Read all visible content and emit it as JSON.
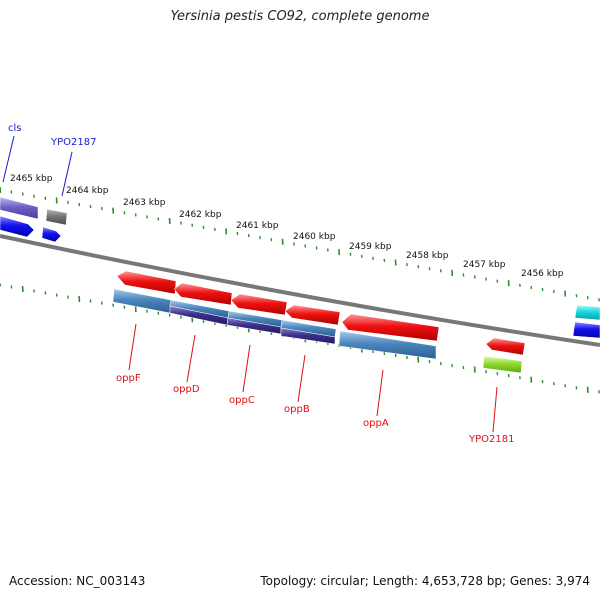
{
  "title": "Yersinia pestis CO92, complete genome",
  "footer": {
    "accession": "Accession: NC_003143",
    "summary": "Topology: circular; Length: 4,653,728 bp; Genes: 3,974"
  },
  "colors": {
    "backbone": "#777777",
    "tick": "#2e8b2e",
    "scale_text": "#111111",
    "label_red": "#dd1111",
    "label_blue": "#1a1acc",
    "cds_red": "#ee1111",
    "gene_steelblue": "#4a86be",
    "gene_darkblue": "#3a2f8a",
    "gene_purple": "#6f5fc7",
    "gene_gray": "#777777",
    "gene_blue": "#1111ee",
    "gene_cyan": "#18d8e0",
    "gene_green": "#8fdc2f"
  },
  "scale_labels": [
    "2465 kbp",
    "2464 kbp",
    "2463 kbp",
    "2462 kbp",
    "2461 kbp",
    "2460 kbp",
    "2459 kbp",
    "2458 kbp",
    "2457 kbp",
    "2456 kbp"
  ],
  "gene_labels": [
    {
      "text": "cls",
      "color": "blue"
    },
    {
      "text": "YPO2187",
      "color": "blue"
    },
    {
      "text": "oppF",
      "color": "red"
    },
    {
      "text": "oppD",
      "color": "red"
    },
    {
      "text": "oppC",
      "color": "red"
    },
    {
      "text": "oppB",
      "color": "red"
    },
    {
      "text": "oppA",
      "color": "red"
    },
    {
      "text": "YPO2181",
      "color": "red"
    }
  ]
}
